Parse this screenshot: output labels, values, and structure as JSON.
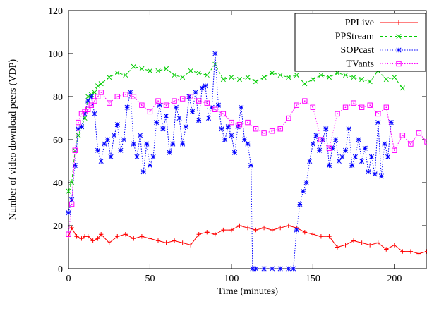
{
  "chart_data": {
    "type": "line",
    "xlabel": "Time (minutes)",
    "ylabel": "Number of video download peers (VDP)",
    "xlim": [
      0,
      220
    ],
    "ylim": [
      0,
      120
    ],
    "xticks": [
      "0",
      "50",
      "100",
      "150",
      "200"
    ],
    "yticks": [
      "0",
      "20",
      "40",
      "60",
      "80",
      "100",
      "120"
    ],
    "grid": false,
    "legend": "top-right",
    "series": [
      {
        "name": "PPLive",
        "color": "#ff0000",
        "dash": "solid",
        "marker": "plus",
        "x": [
          0,
          2,
          5,
          8,
          10,
          12,
          15,
          18,
          20,
          25,
          30,
          35,
          40,
          45,
          50,
          55,
          60,
          65,
          70,
          75,
          80,
          85,
          90,
          95,
          100,
          105,
          110,
          115,
          120,
          125,
          130,
          135,
          140,
          145,
          150,
          155,
          160,
          165,
          170,
          175,
          180,
          185,
          190,
          195,
          200,
          205,
          210,
          215,
          220
        ],
        "y": [
          15,
          19,
          15,
          14,
          15,
          15,
          13,
          14,
          16,
          12,
          15,
          16,
          14,
          15,
          14,
          13,
          12,
          13,
          12,
          11,
          16,
          17,
          16,
          18,
          18,
          20,
          19,
          18,
          19,
          18,
          19,
          20,
          19,
          17,
          16,
          15,
          15,
          10,
          11,
          13,
          12,
          11,
          12,
          9,
          11,
          8,
          8,
          7,
          8
        ]
      },
      {
        "name": "PPStream",
        "color": "#00cc00",
        "dash": "dashed",
        "marker": "x",
        "x": [
          0,
          2,
          4,
          6,
          8,
          10,
          12,
          14,
          16,
          18,
          20,
          25,
          30,
          35,
          40,
          45,
          50,
          55,
          60,
          65,
          70,
          75,
          80,
          85,
          90,
          95,
          100,
          105,
          110,
          115,
          120,
          125,
          130,
          135,
          140,
          145,
          150,
          155,
          160,
          165,
          170,
          175,
          180,
          185,
          190,
          195,
          200,
          205
        ],
        "y": [
          36,
          40,
          55,
          62,
          66,
          70,
          80,
          81,
          82,
          85,
          86,
          89,
          91,
          90,
          94,
          93,
          92,
          92,
          93,
          90,
          89,
          92,
          91,
          90,
          95,
          88,
          89,
          88,
          89,
          87,
          89,
          91,
          90,
          89,
          90,
          86,
          88,
          90,
          89,
          91,
          90,
          89,
          88,
          87,
          92,
          88,
          89,
          84
        ]
      },
      {
        "name": "SOPcast",
        "color": "#0000ff",
        "dash": "dotted",
        "marker": "star",
        "x": [
          0,
          2,
          4,
          6,
          8,
          10,
          12,
          14,
          16,
          18,
          20,
          22,
          24,
          26,
          28,
          30,
          32,
          34,
          36,
          38,
          40,
          42,
          44,
          46,
          48,
          50,
          52,
          54,
          56,
          58,
          60,
          62,
          64,
          66,
          68,
          70,
          72,
          74,
          76,
          78,
          80,
          82,
          84,
          86,
          88,
          90,
          92,
          94,
          96,
          98,
          100,
          102,
          104,
          106,
          108,
          110,
          112,
          113,
          115,
          120,
          125,
          130,
          135,
          138,
          140,
          142,
          144,
          146,
          148,
          150,
          152,
          154,
          156,
          158,
          160,
          162,
          164,
          166,
          168,
          170,
          172,
          174,
          176,
          178,
          180,
          182,
          184,
          186,
          188,
          190,
          192,
          194,
          196,
          198
        ],
        "y": [
          26,
          32,
          48,
          65,
          66,
          72,
          78,
          80,
          72,
          55,
          50,
          58,
          60,
          52,
          62,
          67,
          55,
          60,
          75,
          82,
          58,
          52,
          62,
          45,
          58,
          48,
          52,
          68,
          76,
          65,
          71,
          54,
          58,
          75,
          70,
          58,
          66,
          80,
          73,
          82,
          69,
          84,
          85,
          70,
          75,
          100,
          76,
          65,
          60,
          66,
          62,
          54,
          66,
          75,
          60,
          58,
          48,
          0,
          0,
          0,
          0,
          0,
          0,
          0,
          18,
          30,
          36,
          40,
          50,
          58,
          62,
          55,
          60,
          65,
          48,
          56,
          60,
          50,
          52,
          55,
          65,
          48,
          52,
          60,
          50,
          56,
          45,
          52,
          44,
          68,
          43,
          58,
          52,
          68
        ]
      },
      {
        "name": "TVants",
        "color": "#ff00ff",
        "dash": "dotted",
        "marker": "square",
        "x": [
          0,
          2,
          4,
          6,
          8,
          10,
          12,
          14,
          16,
          18,
          20,
          25,
          30,
          35,
          40,
          45,
          50,
          55,
          60,
          65,
          70,
          75,
          80,
          85,
          90,
          95,
          100,
          105,
          110,
          115,
          120,
          125,
          130,
          135,
          140,
          145,
          150,
          155,
          160,
          165,
          170,
          175,
          180,
          185,
          190,
          195,
          200,
          205,
          210,
          215,
          220
        ],
        "y": [
          16,
          30,
          55,
          68,
          72,
          73,
          74,
          76,
          78,
          80,
          82,
          77,
          80,
          81,
          80,
          76,
          73,
          78,
          76,
          78,
          79,
          80,
          78,
          77,
          74,
          72,
          68,
          67,
          68,
          65,
          63,
          64,
          65,
          70,
          76,
          78,
          75,
          60,
          56,
          72,
          75,
          77,
          75,
          76,
          72,
          75,
          55,
          62,
          58,
          63,
          59
        ]
      }
    ]
  }
}
